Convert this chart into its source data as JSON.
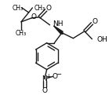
{
  "bg_color": "#ffffff",
  "line_color": "#1a1a1a",
  "line_width": 1.0,
  "figsize": [
    1.39,
    1.21
  ],
  "dpi": 100,
  "xlim": [
    0,
    139
  ],
  "ylim": [
    0,
    121
  ]
}
